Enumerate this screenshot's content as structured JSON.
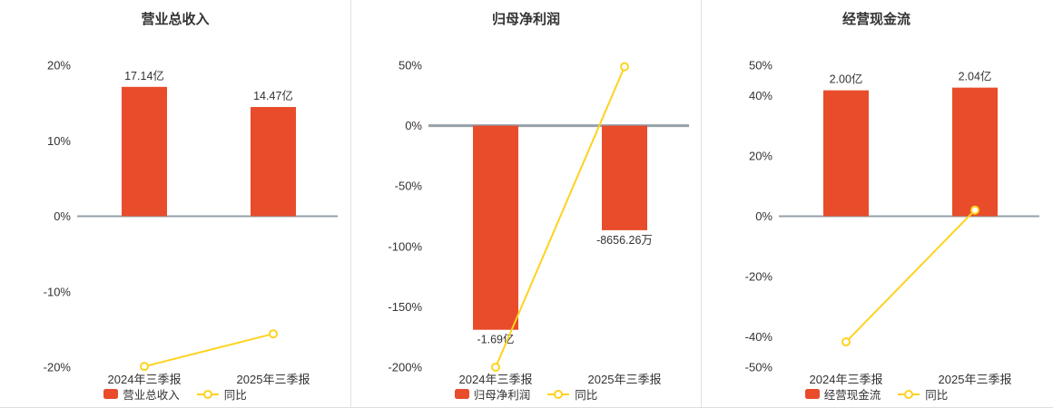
{
  "colors": {
    "bar": "#e84c2b",
    "line": "#ffd21f",
    "zero_line": "#95a0a8",
    "text": "#333333",
    "separator": "#e2e2e2"
  },
  "chart_data": [
    {
      "type": "bar",
      "title": "营业总收入",
      "categories": [
        "2024年三季报",
        "2025年三季报"
      ],
      "series": [
        {
          "name": "营业总收入",
          "type": "bar",
          "value_labels": [
            "17.14亿",
            "14.47亿"
          ],
          "plotted_pct": [
            17.14,
            14.47
          ]
        },
        {
          "name": "同比",
          "type": "line",
          "values_pct": [
            -19.9,
            -15.58
          ]
        }
      ],
      "ylim": [
        -20,
        20
      ],
      "yticks": [
        20,
        10,
        0,
        -10,
        -20
      ],
      "ytick_labels": [
        "20%",
        "10%",
        "0%",
        "-10%",
        "-20%"
      ],
      "xlabel": "",
      "ylabel": "",
      "grid": false,
      "legend_position": "bottom"
    },
    {
      "type": "bar",
      "title": "归母净利润",
      "categories": [
        "2024年三季报",
        "2025年三季报"
      ],
      "series": [
        {
          "name": "归母净利润",
          "type": "bar",
          "value_labels": [
            "-1.69亿",
            "-8656.26万"
          ],
          "plotted_pct": [
            -169,
            -86.56
          ]
        },
        {
          "name": "同比",
          "type": "line",
          "values_pct": [
            -200,
            48.78
          ]
        }
      ],
      "ylim": [
        -200,
        50
      ],
      "yticks": [
        50,
        0,
        -50,
        -100,
        -150,
        -200
      ],
      "ytick_labels": [
        "50%",
        "0%",
        "-50%",
        "-100%",
        "-150%",
        "-200%"
      ],
      "xlabel": "",
      "ylabel": "",
      "grid": false,
      "legend_position": "bottom"
    },
    {
      "type": "bar",
      "title": "经营现金流",
      "categories": [
        "2024年三季报",
        "2025年三季报"
      ],
      "series": [
        {
          "name": "经营现金流",
          "type": "bar",
          "value_labels": [
            "2.00亿",
            "2.04亿"
          ],
          "plotted_pct": [
            41.7,
            42.6
          ]
        },
        {
          "name": "同比",
          "type": "line",
          "values_pct": [
            -41.6,
            2.04
          ]
        }
      ],
      "ylim": [
        -50,
        50
      ],
      "yticks": [
        50,
        40,
        20,
        0,
        -20,
        -40,
        -50
      ],
      "ytick_labels": [
        "50%",
        "40%",
        "20%",
        "0%",
        "-20%",
        "-40%",
        "-50%"
      ],
      "xlabel": "",
      "ylabel": "",
      "grid": false,
      "legend_position": "bottom"
    }
  ]
}
